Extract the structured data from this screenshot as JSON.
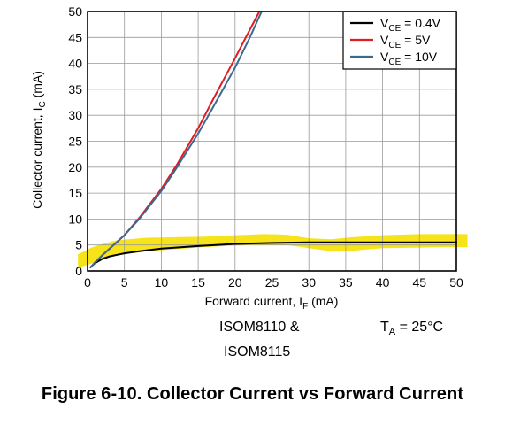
{
  "chart_data": {
    "type": "line",
    "xlabel_pre": "Forward current, I",
    "xlabel_sub": "F",
    "xlabel_post": " (mA)",
    "ylabel_pre": "Collector current, I",
    "ylabel_sub": "C",
    "ylabel_post": " (mA)",
    "xlim": [
      0,
      50
    ],
    "ylim": [
      0,
      50
    ],
    "xticks": [
      0,
      5,
      10,
      15,
      20,
      25,
      30,
      35,
      40,
      45,
      50
    ],
    "yticks": [
      0,
      5,
      10,
      15,
      20,
      25,
      30,
      35,
      40,
      45,
      50
    ],
    "grid": true,
    "legend_position": "top-right",
    "series": [
      {
        "name": "V_CE = 0.4V",
        "legend_pre": "V",
        "legend_sub": "CE",
        "legend_post": " = 0.4V",
        "color": "#000000",
        "x": [
          0.4,
          1,
          2,
          3,
          4,
          5,
          7,
          10,
          15,
          20,
          25,
          30,
          35,
          40,
          45,
          50
        ],
        "y": [
          0.7,
          1.5,
          2.3,
          2.8,
          3.1,
          3.4,
          3.8,
          4.3,
          4.8,
          5.2,
          5.4,
          5.5,
          5.5,
          5.5,
          5.5,
          5.5
        ]
      },
      {
        "name": "V_CE = 5V",
        "legend_pre": "V",
        "legend_sub": "CE",
        "legend_post": " = 5V",
        "color": "#e01b24",
        "x": [
          0.4,
          1,
          2,
          3,
          4,
          5,
          7,
          10,
          12,
          15,
          17,
          20,
          22,
          23.3
        ],
        "y": [
          0.7,
          1.6,
          3.0,
          4.3,
          5.6,
          6.9,
          10.2,
          15.8,
          20.2,
          27.5,
          33.0,
          41.0,
          46.5,
          50.0
        ]
      },
      {
        "name": "V_CE = 10V",
        "legend_pre": "V",
        "legend_sub": "CE",
        "legend_post": " = 10V",
        "color": "#3b6a8f",
        "x": [
          0.4,
          1,
          2,
          3,
          4,
          5,
          7,
          10,
          12,
          15,
          17,
          20,
          22,
          23.6
        ],
        "y": [
          0.7,
          1.6,
          3.0,
          4.3,
          5.6,
          6.9,
          10.0,
          15.4,
          19.7,
          26.5,
          31.5,
          39.2,
          45.0,
          50.0
        ]
      }
    ]
  },
  "notes": {
    "device_line1": "ISOM8110 &",
    "device_line2": "ISOM8115",
    "ta_pre": "T",
    "ta_sub": "A",
    "ta_post": " = 25°C"
  },
  "caption": "Figure 6-10. Collector Current vs Forward Current",
  "highlight_color": "#f5e000"
}
